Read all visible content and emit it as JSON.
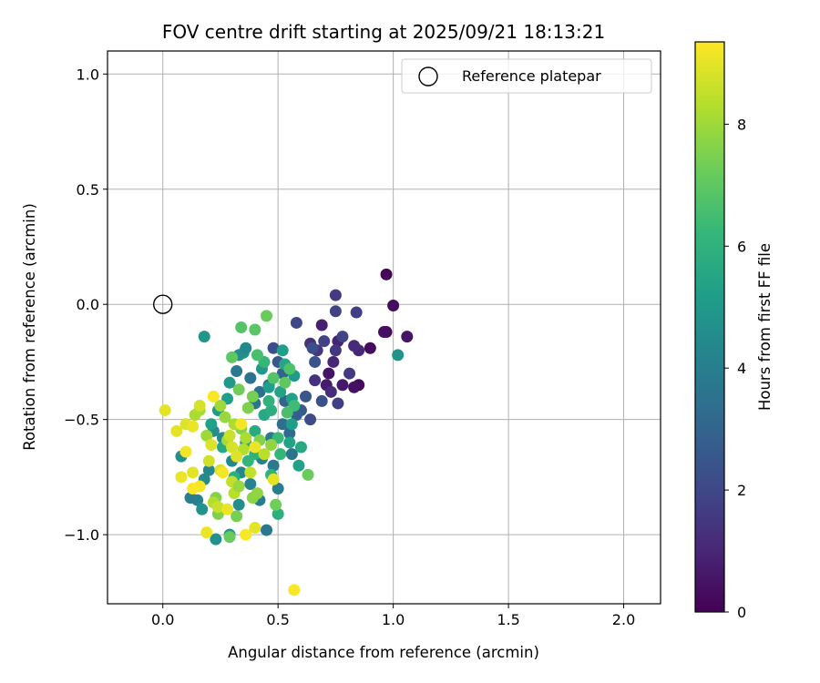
{
  "chart_data": {
    "type": "scatter",
    "title": "FOV centre drift starting at 2025/09/21 18:13:21",
    "xlabel": "Angular distance from reference (arcmin)",
    "ylabel": "Rotation from reference (arcmin)",
    "xlim": [
      -0.24,
      2.16
    ],
    "ylim": [
      -1.3,
      1.1
    ],
    "xticks": [
      0.0,
      0.5,
      1.0,
      1.5,
      2.0
    ],
    "xtick_labels": [
      "0.0",
      "0.5",
      "1.0",
      "1.5",
      "2.0"
    ],
    "yticks": [
      1.0,
      0.5,
      0.0,
      -0.5,
      -1.0
    ],
    "ytick_labels": [
      "1.0",
      "0.5",
      "0.0",
      "−0.5",
      "−1.0"
    ],
    "grid": true,
    "legend": {
      "position": "top-right",
      "entries": [
        "Reference platepar"
      ]
    },
    "reference_point": {
      "x": 0.0,
      "y": 0.0,
      "label": "Reference platepar"
    },
    "colorbar": {
      "label": "Hours from first FF file",
      "range": [
        0,
        9.35
      ],
      "ticks": [
        0,
        2,
        4,
        6,
        8
      ],
      "tick_labels": [
        "0",
        "2",
        "4",
        "6",
        "8"
      ],
      "colormap": "viridis"
    },
    "series": [
      {
        "name": "FOV centre drift",
        "points": [
          {
            "x": 0.97,
            "y": 0.13,
            "h": 0.1
          },
          {
            "x": 1.0,
            "y": -0.005,
            "h": 0.3
          },
          {
            "x": 0.97,
            "y": -0.12,
            "h": 0.2
          },
          {
            "x": 0.96,
            "y": -0.12,
            "h": 0.4
          },
          {
            "x": 1.06,
            "y": -0.14,
            "h": 0.5
          },
          {
            "x": 0.9,
            "y": -0.19,
            "h": 0.3
          },
          {
            "x": 0.85,
            "y": -0.35,
            "h": 0.2
          },
          {
            "x": 0.83,
            "y": -0.36,
            "h": 0.4
          },
          {
            "x": 0.78,
            "y": -0.35,
            "h": 0.6
          },
          {
            "x": 0.72,
            "y": -0.3,
            "h": 0.5
          },
          {
            "x": 0.71,
            "y": -0.35,
            "h": 0.7
          },
          {
            "x": 0.69,
            "y": -0.09,
            "h": 0.8
          },
          {
            "x": 0.76,
            "y": -0.16,
            "h": 0.9
          },
          {
            "x": 0.85,
            "y": -0.2,
            "h": 1.0
          },
          {
            "x": 0.83,
            "y": -0.18,
            "h": 1.1
          },
          {
            "x": 0.74,
            "y": -0.25,
            "h": 1.0
          },
          {
            "x": 0.73,
            "y": -0.38,
            "h": 1.2
          },
          {
            "x": 0.66,
            "y": -0.33,
            "h": 1.3
          },
          {
            "x": 0.64,
            "y": -0.17,
            "h": 1.3
          },
          {
            "x": 0.67,
            "y": -0.2,
            "h": 1.4
          },
          {
            "x": 0.75,
            "y": 0.04,
            "h": 1.6
          },
          {
            "x": 0.84,
            "y": -0.035,
            "h": 1.7
          },
          {
            "x": 0.75,
            "y": -0.03,
            "h": 1.8
          },
          {
            "x": 0.78,
            "y": -0.14,
            "h": 1.9
          },
          {
            "x": 0.75,
            "y": -0.2,
            "h": 1.5
          },
          {
            "x": 0.7,
            "y": -0.16,
            "h": 1.8
          },
          {
            "x": 0.76,
            "y": -0.43,
            "h": 1.7
          },
          {
            "x": 0.81,
            "y": -0.3,
            "h": 1.6
          },
          {
            "x": 0.58,
            "y": -0.08,
            "h": 2.0
          },
          {
            "x": 0.65,
            "y": -0.19,
            "h": 2.2
          },
          {
            "x": 0.69,
            "y": -0.42,
            "h": 2.3
          },
          {
            "x": 0.64,
            "y": -0.5,
            "h": 2.1
          },
          {
            "x": 0.66,
            "y": -0.25,
            "h": 2.4
          },
          {
            "x": 0.62,
            "y": -0.4,
            "h": 2.5
          },
          {
            "x": 0.6,
            "y": -0.46,
            "h": 2.6
          },
          {
            "x": 0.58,
            "y": -0.48,
            "h": 2.8
          },
          {
            "x": 0.48,
            "y": -0.19,
            "h": 2.2
          },
          {
            "x": 0.5,
            "y": -0.25,
            "h": 2.6
          },
          {
            "x": 0.52,
            "y": -0.3,
            "h": 3.0
          },
          {
            "x": 0.46,
            "y": -0.35,
            "h": 3.2
          },
          {
            "x": 0.42,
            "y": -0.38,
            "h": 3.4
          },
          {
            "x": 0.4,
            "y": -0.43,
            "h": 3.6
          },
          {
            "x": 0.38,
            "y": -0.32,
            "h": 3.5
          },
          {
            "x": 0.32,
            "y": -0.29,
            "h": 3.8
          },
          {
            "x": 0.53,
            "y": -0.42,
            "h": 3.0
          },
          {
            "x": 0.52,
            "y": -0.52,
            "h": 3.4
          },
          {
            "x": 0.55,
            "y": -0.56,
            "h": 3.2
          },
          {
            "x": 0.56,
            "y": -0.65,
            "h": 3.6
          },
          {
            "x": 0.48,
            "y": -0.7,
            "h": 3.8
          },
          {
            "x": 0.5,
            "y": -0.8,
            "h": 4.0
          },
          {
            "x": 0.47,
            "y": -0.58,
            "h": 3.9
          },
          {
            "x": 0.43,
            "y": -0.67,
            "h": 4.1
          },
          {
            "x": 0.45,
            "y": -0.98,
            "h": 3.7
          },
          {
            "x": 0.42,
            "y": -0.85,
            "h": 3.9
          },
          {
            "x": 0.38,
            "y": -0.78,
            "h": 4.2
          },
          {
            "x": 0.34,
            "y": -0.73,
            "h": 4.3
          },
          {
            "x": 0.3,
            "y": -0.68,
            "h": 4.4
          },
          {
            "x": 0.26,
            "y": -0.58,
            "h": 4.5
          },
          {
            "x": 0.22,
            "y": -0.55,
            "h": 4.6
          },
          {
            "x": 0.2,
            "y": -0.72,
            "h": 4.3
          },
          {
            "x": 0.18,
            "y": -0.76,
            "h": 4.5
          },
          {
            "x": 0.15,
            "y": -0.85,
            "h": 4.2
          },
          {
            "x": 0.12,
            "y": -0.84,
            "h": 4.0
          },
          {
            "x": 0.08,
            "y": -0.66,
            "h": 4.6
          },
          {
            "x": 0.17,
            "y": -0.89,
            "h": 4.8
          },
          {
            "x": 0.23,
            "y": -1.02,
            "h": 4.7
          },
          {
            "x": 0.29,
            "y": -1.0,
            "h": 4.9
          },
          {
            "x": 0.33,
            "y": -0.87,
            "h": 4.6
          },
          {
            "x": 0.18,
            "y": -0.14,
            "h": 4.9
          },
          {
            "x": 0.35,
            "y": -0.21,
            "h": 4.8
          },
          {
            "x": 0.33,
            "y": -0.22,
            "h": 4.6
          },
          {
            "x": 0.36,
            "y": -0.19,
            "h": 4.4
          },
          {
            "x": 0.29,
            "y": -0.34,
            "h": 5.0
          },
          {
            "x": 0.28,
            "y": -0.41,
            "h": 5.2
          },
          {
            "x": 0.24,
            "y": -0.46,
            "h": 5.1
          },
          {
            "x": 0.21,
            "y": -0.52,
            "h": 5.3
          },
          {
            "x": 0.43,
            "y": -0.28,
            "h": 5.0
          },
          {
            "x": 0.46,
            "y": -0.36,
            "h": 5.2
          },
          {
            "x": 0.51,
            "y": -0.38,
            "h": 5.4
          },
          {
            "x": 0.56,
            "y": -0.41,
            "h": 5.3
          },
          {
            "x": 0.57,
            "y": -0.31,
            "h": 5.1
          },
          {
            "x": 0.52,
            "y": -0.2,
            "h": 5.2
          },
          {
            "x": 0.53,
            "y": -0.26,
            "h": 5.5
          },
          {
            "x": 0.6,
            "y": -0.62,
            "h": 5.6
          },
          {
            "x": 0.55,
            "y": -0.6,
            "h": 5.4
          },
          {
            "x": 0.56,
            "y": -0.52,
            "h": 5.2
          },
          {
            "x": 1.02,
            "y": -0.22,
            "h": 4.8
          },
          {
            "x": 0.59,
            "y": -0.7,
            "h": 5.3
          },
          {
            "x": 0.44,
            "y": -0.48,
            "h": 5.6
          },
          {
            "x": 0.47,
            "y": -0.46,
            "h": 5.8
          },
          {
            "x": 0.4,
            "y": -0.55,
            "h": 5.7
          },
          {
            "x": 0.36,
            "y": -0.6,
            "h": 5.5
          },
          {
            "x": 0.26,
            "y": -0.62,
            "h": 5.6
          },
          {
            "x": 0.31,
            "y": -0.75,
            "h": 5.8
          },
          {
            "x": 0.5,
            "y": -0.91,
            "h": 5.9
          },
          {
            "x": 0.47,
            "y": -0.74,
            "h": 6.0
          },
          {
            "x": 0.4,
            "y": -0.65,
            "h": 5.9
          },
          {
            "x": 0.37,
            "y": -0.68,
            "h": 6.1
          },
          {
            "x": 0.51,
            "y": -0.65,
            "h": 6.2
          },
          {
            "x": 0.5,
            "y": -0.58,
            "h": 6.3
          },
          {
            "x": 0.46,
            "y": -0.42,
            "h": 6.0
          },
          {
            "x": 0.44,
            "y": -0.25,
            "h": 6.2
          },
          {
            "x": 0.57,
            "y": -0.44,
            "h": 6.4
          },
          {
            "x": 0.54,
            "y": -0.47,
            "h": 6.6
          },
          {
            "x": 0.34,
            "y": -0.1,
            "h": 6.8
          },
          {
            "x": 0.41,
            "y": -0.22,
            "h": 6.6
          },
          {
            "x": 0.3,
            "y": -0.23,
            "h": 7.0
          },
          {
            "x": 0.45,
            "y": -0.05,
            "h": 7.2
          },
          {
            "x": 0.4,
            "y": -0.11,
            "h": 6.9
          },
          {
            "x": 0.48,
            "y": -0.32,
            "h": 6.8
          },
          {
            "x": 0.53,
            "y": -0.34,
            "h": 7.0
          },
          {
            "x": 0.55,
            "y": -0.28,
            "h": 6.7
          },
          {
            "x": 0.63,
            "y": -0.74,
            "h": 7.2
          },
          {
            "x": 0.49,
            "y": -0.87,
            "h": 7.3
          },
          {
            "x": 0.32,
            "y": -0.92,
            "h": 7.4
          },
          {
            "x": 0.29,
            "y": -1.01,
            "h": 7.2
          },
          {
            "x": 0.24,
            "y": -0.91,
            "h": 7.5
          },
          {
            "x": 0.23,
            "y": -0.84,
            "h": 7.6
          },
          {
            "x": 0.39,
            "y": -0.84,
            "h": 7.7
          },
          {
            "x": 0.41,
            "y": -0.82,
            "h": 7.8
          },
          {
            "x": 0.39,
            "y": -0.4,
            "h": 7.4
          },
          {
            "x": 0.33,
            "y": -0.37,
            "h": 7.3
          },
          {
            "x": 0.37,
            "y": -0.45,
            "h": 7.5
          },
          {
            "x": 0.34,
            "y": -0.54,
            "h": 7.6
          },
          {
            "x": 0.42,
            "y": -0.59,
            "h": 7.6
          },
          {
            "x": 0.47,
            "y": -0.61,
            "h": 7.8
          },
          {
            "x": 0.27,
            "y": -0.49,
            "h": 7.9
          },
          {
            "x": 0.25,
            "y": -0.44,
            "h": 8.0
          },
          {
            "x": 0.16,
            "y": -0.46,
            "h": 8.1
          },
          {
            "x": 0.14,
            "y": -0.48,
            "h": 8.2
          },
          {
            "x": 0.19,
            "y": -0.57,
            "h": 8.0
          },
          {
            "x": 0.28,
            "y": -0.59,
            "h": 8.1
          },
          {
            "x": 0.31,
            "y": -0.52,
            "h": 8.2
          },
          {
            "x": 0.35,
            "y": -0.63,
            "h": 8.3
          },
          {
            "x": 0.44,
            "y": -0.65,
            "h": 8.4
          },
          {
            "x": 0.38,
            "y": -0.73,
            "h": 8.5
          },
          {
            "x": 0.31,
            "y": -0.82,
            "h": 8.4
          },
          {
            "x": 0.22,
            "y": -0.86,
            "h": 8.3
          },
          {
            "x": 0.24,
            "y": -0.88,
            "h": 8.6
          },
          {
            "x": 0.3,
            "y": -0.77,
            "h": 8.5
          },
          {
            "x": 0.2,
            "y": -0.68,
            "h": 8.7
          },
          {
            "x": 0.25,
            "y": -0.72,
            "h": 8.8
          },
          {
            "x": 0.21,
            "y": -0.61,
            "h": 8.9
          },
          {
            "x": 0.29,
            "y": -0.57,
            "h": 8.6
          },
          {
            "x": 0.1,
            "y": -0.52,
            "h": 8.9
          },
          {
            "x": 0.06,
            "y": -0.55,
            "h": 9.0
          },
          {
            "x": 0.13,
            "y": -0.53,
            "h": 9.1
          },
          {
            "x": 0.16,
            "y": -0.44,
            "h": 8.8
          },
          {
            "x": 0.01,
            "y": -0.46,
            "h": 9.0
          },
          {
            "x": 0.1,
            "y": -0.64,
            "h": 9.2
          },
          {
            "x": 0.08,
            "y": -0.75,
            "h": 9.1
          },
          {
            "x": 0.13,
            "y": -0.73,
            "h": 9.0
          },
          {
            "x": 0.16,
            "y": -0.79,
            "h": 9.2
          },
          {
            "x": 0.19,
            "y": -0.99,
            "h": 9.1
          },
          {
            "x": 0.36,
            "y": -1.0,
            "h": 9.3
          },
          {
            "x": 0.4,
            "y": -0.97,
            "h": 9.0
          },
          {
            "x": 0.22,
            "y": -0.4,
            "h": 9.3
          },
          {
            "x": 0.34,
            "y": -0.52,
            "h": 9.2
          },
          {
            "x": 0.4,
            "y": -0.62,
            "h": 9.1
          },
          {
            "x": 0.48,
            "y": -0.76,
            "h": 9.0
          },
          {
            "x": 0.57,
            "y": -1.24,
            "h": 9.3
          },
          {
            "x": 0.26,
            "y": -0.73,
            "h": 9.2
          },
          {
            "x": 0.32,
            "y": -0.66,
            "h": 8.9
          },
          {
            "x": 0.28,
            "y": -0.89,
            "h": 9.1
          },
          {
            "x": 0.13,
            "y": -0.8,
            "h": 9.3
          },
          {
            "x": 0.3,
            "y": -0.62,
            "h": 8.8
          },
          {
            "x": 0.36,
            "y": -0.58,
            "h": 8.2
          },
          {
            "x": 0.33,
            "y": -0.79,
            "h": 7.9
          }
        ]
      }
    ]
  }
}
